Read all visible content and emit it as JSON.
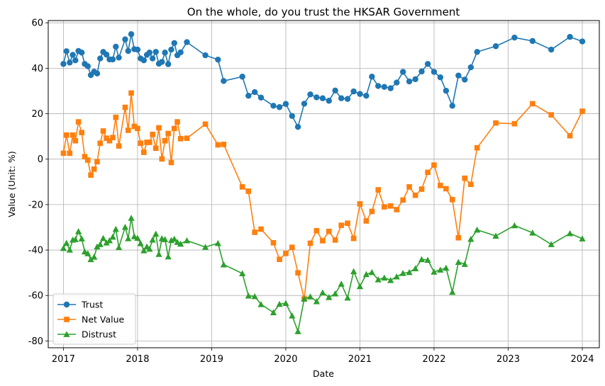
{
  "chart_data": {
    "type": "line",
    "title": "On the whole, do you trust the HKSAR Government",
    "xlabel": "Date",
    "ylabel": "Value (Unit: %)",
    "x_ticks": [
      "2017",
      "2018",
      "2019",
      "2020",
      "2021",
      "2022",
      "2023",
      "2024"
    ],
    "y_ticks": [
      -80,
      -60,
      -40,
      -20,
      0,
      20,
      40,
      60
    ],
    "xlim": [
      "2016-10-18",
      "2024-03-25"
    ],
    "ylim": [
      -83,
      61
    ],
    "grid": true,
    "legend_position": "lower-left",
    "series": [
      {
        "name": "Trust",
        "color": "#1f77b4",
        "marker": "circle",
        "points": [
          [
            "2017-01-01",
            41.9
          ],
          [
            "2017-01-16",
            47.5
          ],
          [
            "2017-02-01",
            42.5
          ],
          [
            "2017-02-16",
            45.9
          ],
          [
            "2017-03-01",
            43.5
          ],
          [
            "2017-03-16",
            47.6
          ],
          [
            "2017-04-01",
            46.9
          ],
          [
            "2017-04-16",
            41.9
          ],
          [
            "2017-05-01",
            40.9
          ],
          [
            "2017-05-16",
            37.0
          ],
          [
            "2017-06-01",
            38.5
          ],
          [
            "2017-06-16",
            37.7
          ],
          [
            "2017-07-01",
            44.3
          ],
          [
            "2017-07-16",
            47.2
          ],
          [
            "2017-08-01",
            46.0
          ],
          [
            "2017-08-16",
            43.9
          ],
          [
            "2017-09-01",
            43.9
          ],
          [
            "2017-09-16",
            49.5
          ],
          [
            "2017-10-01",
            44.7
          ],
          [
            "2017-11-01",
            52.7
          ],
          [
            "2017-11-16",
            47.6
          ],
          [
            "2017-12-01",
            55.0
          ],
          [
            "2017-12-16",
            48.4
          ],
          [
            "2018-01-01",
            48.2
          ],
          [
            "2018-01-16",
            44.3
          ],
          [
            "2018-02-01",
            43.5
          ],
          [
            "2018-02-16",
            45.9
          ],
          [
            "2018-03-01",
            46.9
          ],
          [
            "2018-03-16",
            44.3
          ],
          [
            "2018-04-01",
            47.2
          ],
          [
            "2018-04-16",
            42.0
          ],
          [
            "2018-05-01",
            42.8
          ],
          [
            "2018-05-16",
            46.9
          ],
          [
            "2018-06-01",
            41.8
          ],
          [
            "2018-06-16",
            48.2
          ],
          [
            "2018-07-01",
            51.1
          ],
          [
            "2018-07-16",
            45.7
          ],
          [
            "2018-08-01",
            47.0
          ],
          [
            "2018-09-01",
            51.5
          ],
          [
            "2018-12-01",
            45.7
          ],
          [
            "2019-02-01",
            43.8
          ],
          [
            "2019-03-01",
            34.4
          ],
          [
            "2019-06-01",
            36.3
          ],
          [
            "2019-07-01",
            27.9
          ],
          [
            "2019-08-01",
            29.5
          ],
          [
            "2019-09-01",
            27.1
          ],
          [
            "2019-11-01",
            23.5
          ],
          [
            "2019-12-01",
            22.9
          ],
          [
            "2020-01-01",
            24.3
          ],
          [
            "2020-02-01",
            19.0
          ],
          [
            "2020-03-01",
            14.2
          ],
          [
            "2020-04-01",
            24.4
          ],
          [
            "2020-05-01",
            28.5
          ],
          [
            "2020-06-01",
            27.2
          ],
          [
            "2020-07-01",
            26.8
          ],
          [
            "2020-08-01",
            25.7
          ],
          [
            "2020-09-01",
            30.2
          ],
          [
            "2020-10-01",
            26.8
          ],
          [
            "2020-11-01",
            26.5
          ],
          [
            "2020-12-01",
            29.8
          ],
          [
            "2021-01-01",
            28.7
          ],
          [
            "2021-02-01",
            27.9
          ],
          [
            "2021-03-01",
            36.3
          ],
          [
            "2021-04-01",
            32.2
          ],
          [
            "2021-05-01",
            31.8
          ],
          [
            "2021-06-01",
            31.2
          ],
          [
            "2021-07-01",
            33.7
          ],
          [
            "2021-08-01",
            38.4
          ],
          [
            "2021-09-01",
            34.2
          ],
          [
            "2021-10-01",
            35.2
          ],
          [
            "2021-11-01",
            38.6
          ],
          [
            "2021-12-01",
            41.9
          ],
          [
            "2022-01-01",
            38.4
          ],
          [
            "2022-02-01",
            36.0
          ],
          [
            "2022-03-01",
            30.1
          ],
          [
            "2022-04-01",
            23.5
          ],
          [
            "2022-05-01",
            36.8
          ],
          [
            "2022-06-01",
            35.0
          ],
          [
            "2022-07-01",
            40.4
          ],
          [
            "2022-08-01",
            47.2
          ],
          [
            "2022-11-01",
            49.7
          ],
          [
            "2023-02-01",
            53.5
          ],
          [
            "2023-05-01",
            52.0
          ],
          [
            "2023-08-01",
            48.2
          ],
          [
            "2023-11-01",
            53.8
          ],
          [
            "2024-01-01",
            51.8
          ]
        ]
      },
      {
        "name": "Net Value",
        "color": "#ff7f0e",
        "marker": "square",
        "points": [
          [
            "2017-01-01",
            2.6
          ],
          [
            "2017-01-16",
            10.6
          ],
          [
            "2017-02-01",
            2.6
          ],
          [
            "2017-02-16",
            10.6
          ],
          [
            "2017-03-01",
            8.1
          ],
          [
            "2017-03-16",
            16.4
          ],
          [
            "2017-04-01",
            11.7
          ],
          [
            "2017-04-16",
            1.1
          ],
          [
            "2017-05-01",
            -0.4
          ],
          [
            "2017-05-16",
            -7.0
          ],
          [
            "2017-06-01",
            -4.4
          ],
          [
            "2017-06-16",
            -1.1
          ],
          [
            "2017-07-01",
            7.0
          ],
          [
            "2017-07-16",
            12.4
          ],
          [
            "2017-08-01",
            9.2
          ],
          [
            "2017-08-16",
            8.1
          ],
          [
            "2017-09-01",
            9.5
          ],
          [
            "2017-09-16",
            18.4
          ],
          [
            "2017-10-01",
            5.8
          ],
          [
            "2017-11-01",
            22.8
          ],
          [
            "2017-11-16",
            12.7
          ],
          [
            "2017-12-01",
            29.1
          ],
          [
            "2017-12-16",
            14.4
          ],
          [
            "2018-01-01",
            13.5
          ],
          [
            "2018-01-16",
            7.0
          ],
          [
            "2018-02-01",
            3.0
          ],
          [
            "2018-02-16",
            7.4
          ],
          [
            "2018-03-01",
            7.4
          ],
          [
            "2018-03-16",
            10.9
          ],
          [
            "2018-04-01",
            4.8
          ],
          [
            "2018-04-16",
            13.8
          ],
          [
            "2018-05-01",
            0.1
          ],
          [
            "2018-05-16",
            8.1
          ],
          [
            "2018-06-01",
            11.3
          ],
          [
            "2018-06-16",
            -1.5
          ],
          [
            "2018-07-01",
            13.5
          ],
          [
            "2018-07-16",
            16.4
          ],
          [
            "2018-08-01",
            9.0
          ],
          [
            "2018-09-01",
            9.2
          ],
          [
            "2018-12-01",
            15.4
          ],
          [
            "2019-02-01",
            6.3
          ],
          [
            "2019-03-01",
            6.5
          ],
          [
            "2019-06-01",
            -12.2
          ],
          [
            "2019-07-01",
            -14.1
          ],
          [
            "2019-08-01",
            -32.2
          ],
          [
            "2019-09-01",
            -30.8
          ],
          [
            "2019-11-01",
            -36.8
          ],
          [
            "2019-12-01",
            -44.1
          ],
          [
            "2020-01-01",
            -41.5
          ],
          [
            "2020-02-01",
            -38.8
          ],
          [
            "2020-03-01",
            -50.0
          ],
          [
            "2020-04-01",
            -61.5
          ],
          [
            "2020-05-01",
            -37.0
          ],
          [
            "2020-06-01",
            -31.5
          ],
          [
            "2020-07-01",
            -35.9
          ],
          [
            "2020-08-01",
            -31.8
          ],
          [
            "2020-09-01",
            -35.6
          ],
          [
            "2020-10-01",
            -29.1
          ],
          [
            "2020-11-01",
            -28.2
          ],
          [
            "2020-12-01",
            -34.9
          ],
          [
            "2021-01-01",
            -19.7
          ],
          [
            "2021-02-01",
            -27.2
          ],
          [
            "2021-03-01",
            -23.0
          ],
          [
            "2021-04-01",
            -13.5
          ],
          [
            "2021-05-01",
            -21.0
          ],
          [
            "2021-06-01",
            -20.6
          ],
          [
            "2021-07-01",
            -22.2
          ],
          [
            "2021-08-01",
            -18.0
          ],
          [
            "2021-09-01",
            -12.2
          ],
          [
            "2021-10-01",
            -15.9
          ],
          [
            "2021-11-01",
            -13.2
          ],
          [
            "2021-12-01",
            -5.8
          ],
          [
            "2022-01-01",
            -2.6
          ],
          [
            "2022-02-01",
            -11.6
          ],
          [
            "2022-03-01",
            -13.0
          ],
          [
            "2022-04-01",
            -17.8
          ],
          [
            "2022-05-01",
            -34.6
          ],
          [
            "2022-06-01",
            -8.4
          ],
          [
            "2022-07-01",
            -11.1
          ],
          [
            "2022-08-01",
            5.0
          ],
          [
            "2022-11-01",
            15.9
          ],
          [
            "2023-02-01",
            15.6
          ],
          [
            "2023-05-01",
            24.4
          ],
          [
            "2023-08-01",
            19.5
          ],
          [
            "2023-11-01",
            10.3
          ],
          [
            "2024-01-01",
            21.1
          ]
        ]
      },
      {
        "name": "Distrust",
        "color": "#2ca02c",
        "marker": "triangle",
        "points": [
          [
            "2017-01-01",
            -39.2
          ],
          [
            "2017-01-16",
            -36.9
          ],
          [
            "2017-02-01",
            -39.9
          ],
          [
            "2017-02-16",
            -35.5
          ],
          [
            "2017-03-01",
            -35.3
          ],
          [
            "2017-03-16",
            -31.8
          ],
          [
            "2017-04-01",
            -35.0
          ],
          [
            "2017-04-16",
            -40.7
          ],
          [
            "2017-05-01",
            -41.5
          ],
          [
            "2017-05-16",
            -44.1
          ],
          [
            "2017-06-01",
            -43.0
          ],
          [
            "2017-06-16",
            -38.5
          ],
          [
            "2017-07-01",
            -37.5
          ],
          [
            "2017-07-16",
            -34.8
          ],
          [
            "2017-08-01",
            -36.8
          ],
          [
            "2017-08-16",
            -35.8
          ],
          [
            "2017-09-01",
            -34.2
          ],
          [
            "2017-09-16",
            -30.8
          ],
          [
            "2017-10-01",
            -38.8
          ],
          [
            "2017-11-01",
            -29.9
          ],
          [
            "2017-11-16",
            -34.9
          ],
          [
            "2017-12-01",
            -25.9
          ],
          [
            "2017-12-16",
            -34.0
          ],
          [
            "2018-01-01",
            -34.7
          ],
          [
            "2018-01-16",
            -37.1
          ],
          [
            "2018-02-01",
            -40.2
          ],
          [
            "2018-02-16",
            -38.5
          ],
          [
            "2018-03-01",
            -39.5
          ],
          [
            "2018-03-16",
            -35.5
          ],
          [
            "2018-04-01",
            -32.9
          ],
          [
            "2018-04-16",
            -41.8
          ],
          [
            "2018-05-01",
            -34.9
          ],
          [
            "2018-05-16",
            -35.3
          ],
          [
            "2018-06-01",
            -42.9
          ],
          [
            "2018-06-16",
            -35.7
          ],
          [
            "2018-07-01",
            -35.1
          ],
          [
            "2018-07-16",
            -36.5
          ],
          [
            "2018-08-01",
            -37.3
          ],
          [
            "2018-09-01",
            -35.8
          ],
          [
            "2018-12-01",
            -38.7
          ],
          [
            "2019-02-01",
            -37.0
          ],
          [
            "2019-03-01",
            -46.4
          ],
          [
            "2019-06-01",
            -50.3
          ],
          [
            "2019-07-01",
            -60.1
          ],
          [
            "2019-08-01",
            -60.4
          ],
          [
            "2019-09-01",
            -63.9
          ],
          [
            "2019-11-01",
            -67.5
          ],
          [
            "2019-12-01",
            -63.8
          ],
          [
            "2020-01-01",
            -63.4
          ],
          [
            "2020-02-01",
            -68.9
          ],
          [
            "2020-03-01",
            -75.8
          ],
          [
            "2020-04-01",
            -61.5
          ],
          [
            "2020-05-01",
            -60.5
          ],
          [
            "2020-06-01",
            -62.6
          ],
          [
            "2020-07-01",
            -58.7
          ],
          [
            "2020-08-01",
            -60.8
          ],
          [
            "2020-09-01",
            -59.2
          ],
          [
            "2020-10-01",
            -54.9
          ],
          [
            "2020-11-01",
            -61.0
          ],
          [
            "2020-12-01",
            -49.4
          ],
          [
            "2021-01-01",
            -56.0
          ],
          [
            "2021-02-01",
            -50.7
          ],
          [
            "2021-03-01",
            -49.8
          ],
          [
            "2021-04-01",
            -53.0
          ],
          [
            "2021-05-01",
            -52.2
          ],
          [
            "2021-06-01",
            -53.3
          ],
          [
            "2021-07-01",
            -51.7
          ],
          [
            "2021-08-01",
            -50.2
          ],
          [
            "2021-09-01",
            -49.8
          ],
          [
            "2021-10-01",
            -48.1
          ],
          [
            "2021-11-01",
            -44.1
          ],
          [
            "2021-12-01",
            -44.4
          ],
          [
            "2022-01-01",
            -49.6
          ],
          [
            "2022-02-01",
            -48.7
          ],
          [
            "2022-03-01",
            -47.9
          ],
          [
            "2022-04-01",
            -58.5
          ],
          [
            "2022-05-01",
            -45.3
          ],
          [
            "2022-06-01",
            -46.2
          ],
          [
            "2022-07-01",
            -35.2
          ],
          [
            "2022-08-01",
            -31.1
          ],
          [
            "2022-11-01",
            -33.8
          ],
          [
            "2023-02-01",
            -29.2
          ],
          [
            "2023-05-01",
            -32.4
          ],
          [
            "2023-08-01",
            -37.5
          ],
          [
            "2023-11-01",
            -32.7
          ],
          [
            "2024-01-01",
            -35.0
          ]
        ]
      }
    ]
  }
}
